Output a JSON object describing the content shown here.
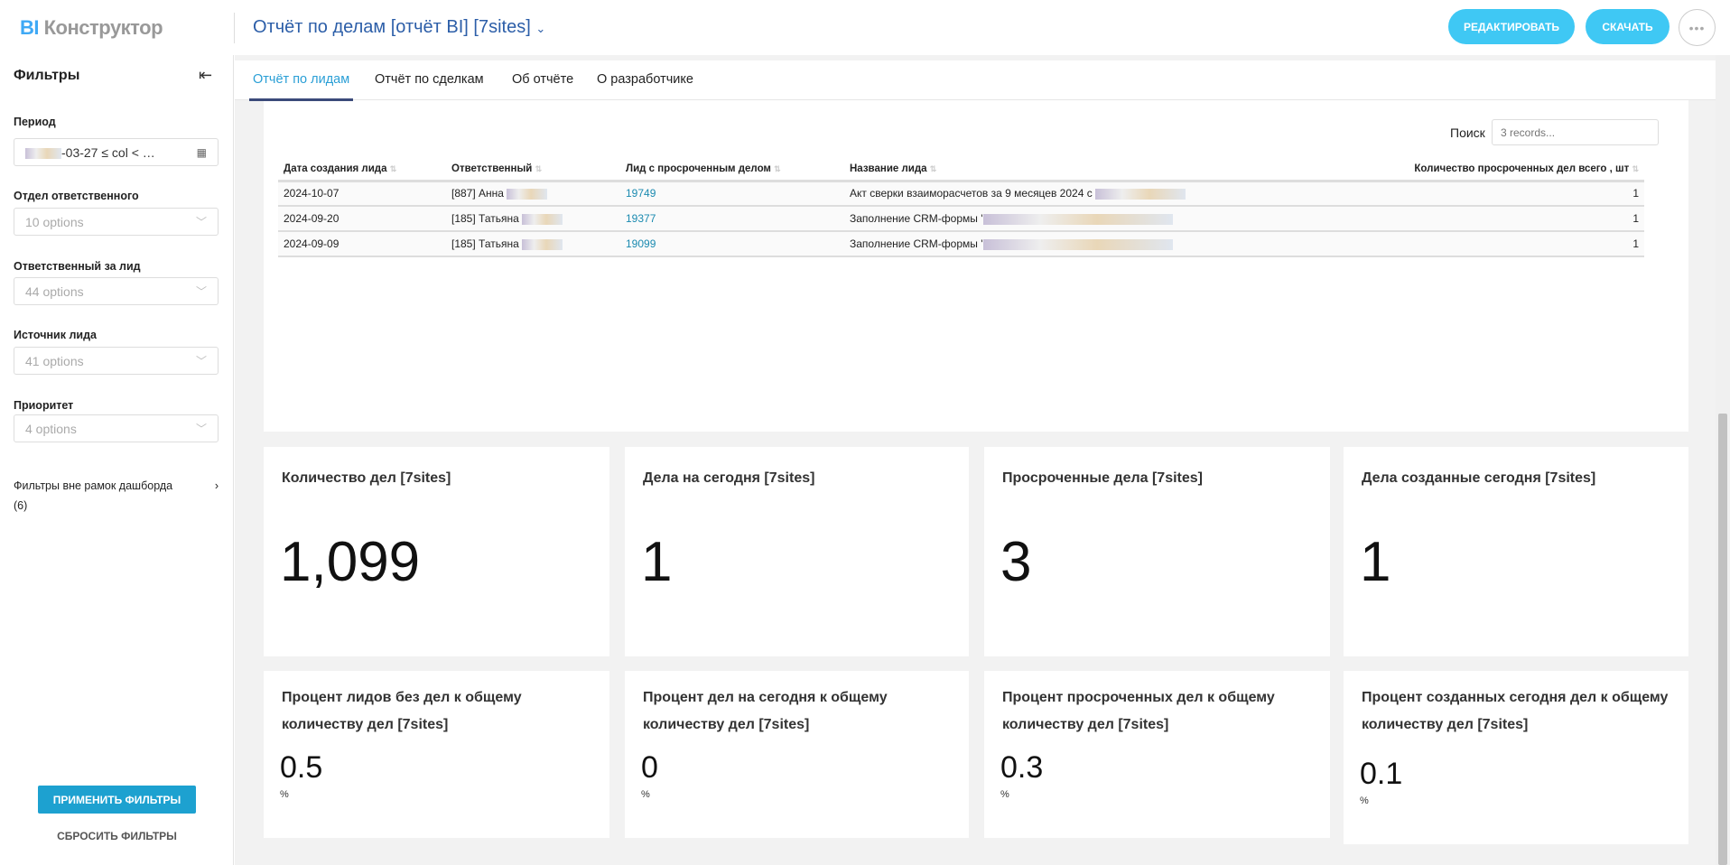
{
  "header": {
    "logo_prefix": "BI",
    "logo_rest": "Конструктор",
    "title": "Отчёт по делам [отчёт BI] [7sites]",
    "edit": "РЕДАКТИРОВАТЬ",
    "download": "СКАЧАТЬ",
    "more": "•••"
  },
  "sidebar": {
    "title": "Фильтры",
    "period_label": "Период",
    "period_value": "-03-27 ≤ col < …",
    "filters": [
      {
        "label": "Отдел ответственного",
        "value": "10 options"
      },
      {
        "label": "Ответственный за лид",
        "value": "44 options"
      },
      {
        "label": "Источник лида",
        "value": "41 options"
      },
      {
        "label": "Приоритет",
        "value": "4 options"
      }
    ],
    "outside": "Фильтры вне рамок дашборда",
    "outside_count": "(6)",
    "apply": "ПРИМЕНИТЬ ФИЛЬТРЫ",
    "reset": "СБРОСИТЬ ФИЛЬТРЫ"
  },
  "tabs": [
    "Отчёт по лидам",
    "Отчёт по сделкам",
    "Об отчёте",
    "О разработчике"
  ],
  "table": {
    "search_label": "Поиск",
    "search_placeholder": "3 records...",
    "columns": [
      "Дата создания лида",
      "Ответственный",
      "Лид с просроченным делом",
      "Название лида",
      "Количество просроченных дел всего , шт"
    ],
    "rows": [
      [
        "2024-10-07",
        "[887] Анна",
        "19749",
        "Акт сверки взаиморасчетов за 9 месяцев 2024 с",
        "1"
      ],
      [
        "2024-09-20",
        "[185] Татьяна",
        "19377",
        "Заполнение CRM-формы '",
        "1"
      ],
      [
        "2024-09-09",
        "[185] Татьяна",
        "19099",
        "Заполнение CRM-формы '",
        "1"
      ]
    ]
  },
  "kpis": [
    {
      "title": "Количество дел [7sites]",
      "value": "1,099"
    },
    {
      "title": "Дела на сегодня [7sites]",
      "value": "1"
    },
    {
      "title": "Просроченные дела [7sites]",
      "value": "3"
    },
    {
      "title": "Дела созданные сегодня [7sites]",
      "value": "1"
    }
  ],
  "percents": [
    {
      "title": "Процент лидов без дел к общему количеству дел [7sites]",
      "value": "0.5",
      "unit": "%"
    },
    {
      "title": "Процент дел на сегодня к общему количеству дел [7sites]",
      "value": "0",
      "unit": "%"
    },
    {
      "title": "Процент просроченных дел к общему количеству дел [7sites]",
      "value": "0.3",
      "unit": "%"
    },
    {
      "title": "Процент созданных сегодня дел к общему количеству дел [7sites]",
      "value": "0.1",
      "unit": "%"
    }
  ]
}
